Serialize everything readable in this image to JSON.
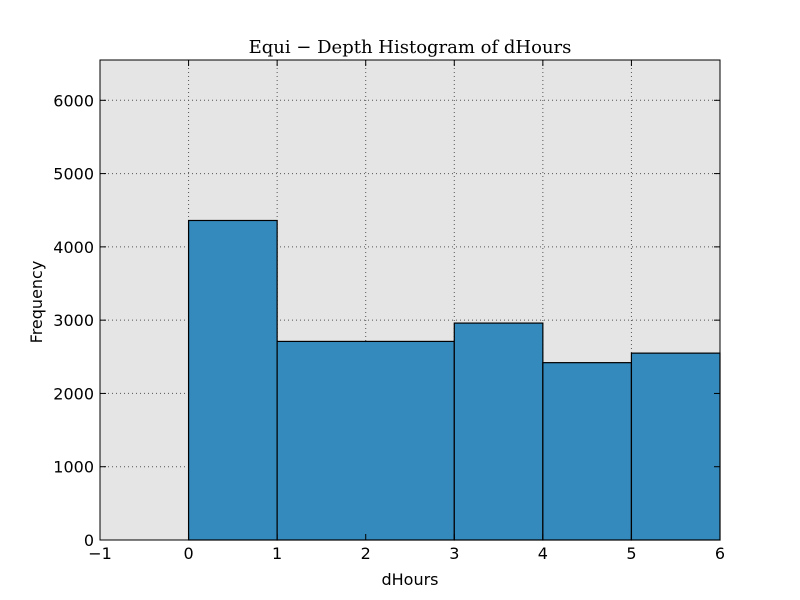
{
  "chart_data": {
    "type": "bar",
    "title": "Equi − Depth Histogram of dHours",
    "xlabel": "dHours",
    "ylabel": "Frequency",
    "xlim": [
      -1,
      6
    ],
    "ylim": [
      0,
      6550
    ],
    "xticks": [
      -1,
      0,
      1,
      2,
      3,
      4,
      5,
      6
    ],
    "xtick_labels": [
      "−1",
      "0",
      "1",
      "2",
      "3",
      "4",
      "5",
      "6"
    ],
    "yticks": [
      0,
      1000,
      2000,
      3000,
      4000,
      5000,
      6000
    ],
    "ytick_labels": [
      "0",
      "1000",
      "2000",
      "3000",
      "4000",
      "5000",
      "6000"
    ],
    "bins": [
      {
        "x0": 0,
        "x1": 1,
        "value": 4360
      },
      {
        "x0": 1,
        "x1": 3,
        "value": 2710
      },
      {
        "x0": 3,
        "x1": 4,
        "value": 2960
      },
      {
        "x0": 4,
        "x1": 5,
        "value": 2420
      },
      {
        "x0": 5,
        "x1": 6,
        "value": 2550
      }
    ],
    "grid": true,
    "colors": {
      "bar": "#348abd",
      "bar_edge": "#000000",
      "plot_background": "#e5e5e5",
      "grid": "#555555"
    }
  }
}
